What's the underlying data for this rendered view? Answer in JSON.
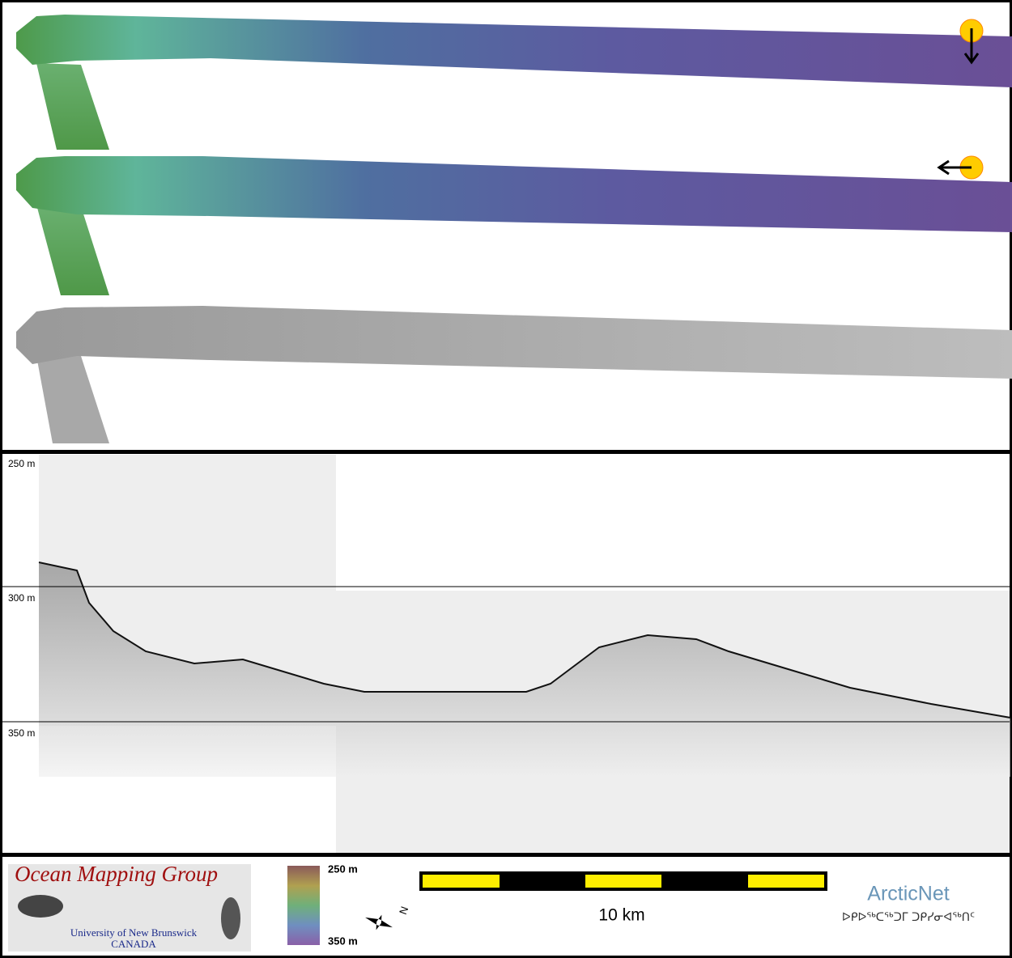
{
  "profile": {
    "depth_labels": [
      "250 m",
      "300 m",
      "350 m"
    ]
  },
  "legend": {
    "organization": "Ocean Mapping Group",
    "university": "University of New Brunswick",
    "country": "CANADA",
    "colorbar_top": "250 m",
    "colorbar_bottom": "350 m",
    "north": "N",
    "scale_label": "10 km",
    "partner": "ArcticNet",
    "partner_syllabics": "ᐅᑭᐅᖅᑕᖅᑐᒥ ᑐᑭᓯᓂᐊᖅᑎᑦ"
  }
}
